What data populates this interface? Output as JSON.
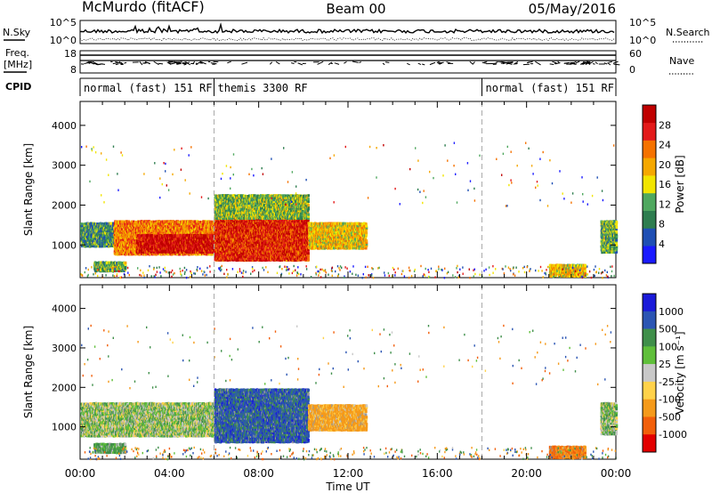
{
  "header": {
    "title": "McMurdo (fitACF)",
    "beam": "Beam 00",
    "date": "05/May/2016"
  },
  "top_panels": {
    "nsky_label": "N.Sky",
    "nsearch_label": "N.Search",
    "noise_ticks_left": [
      "10^5",
      "10^0"
    ],
    "noise_ticks_right": [
      "10^5",
      "10^0"
    ],
    "freq_label_1": "Freq.",
    "freq_label_2": "[MHz]",
    "freq_ticks": [
      "18",
      "8"
    ],
    "nave_label": "Nave",
    "nave_ticks": [
      "60",
      "0"
    ],
    "cpid_label": "CPID",
    "cpid_segments": [
      {
        "label": "normal (fast) 151 RF",
        "start_hour": 0,
        "end_hour": 6
      },
      {
        "label": "themis 3300 RF",
        "start_hour": 6,
        "end_hour": 18
      },
      {
        "label": "normal (fast) 151 RF",
        "start_hour": 18,
        "end_hour": 24
      }
    ]
  },
  "x_axis": {
    "label": "Time UT",
    "ticks": [
      "00:00",
      "04:00",
      "08:00",
      "12:00",
      "16:00",
      "20:00",
      "00:00"
    ],
    "range_hours": [
      0,
      24
    ]
  },
  "colors": {
    "power": [
      "#1a1aff",
      "#1f4fb4",
      "#2e7d4f",
      "#4fa85f",
      "#f2e500",
      "#f5a800",
      "#f57200",
      "#e31a1a",
      "#c00000"
    ],
    "velocity": [
      "#1a1ad9",
      "#2b55b3",
      "#3f8f4a",
      "#5fbf3a",
      "#c8c8c8",
      "#ffd24a",
      "#f59a1a",
      "#f25f0a",
      "#e30000"
    ],
    "ground_scatter": "#9a9a9a"
  },
  "chart_data": [
    {
      "type": "heatmap",
      "name": "power",
      "ylabel": "Slant Range [km]",
      "xlabel": "Time UT",
      "ylim": [
        180,
        4600
      ],
      "yticks": [
        1000,
        2000,
        3000,
        4000
      ],
      "colorbar": {
        "label": "Power [dB]",
        "range": [
          0,
          32
        ],
        "ticks": [
          "4",
          "8",
          "12",
          "16",
          "20",
          "24",
          "28"
        ]
      },
      "echo_regions": [
        {
          "t0": 0.0,
          "t1": 1.5,
          "r0": 1000,
          "r1": 1600,
          "value": 10
        },
        {
          "t0": 1.5,
          "t1": 6.0,
          "r0": 800,
          "r1": 1650,
          "value": 22
        },
        {
          "t0": 2.5,
          "t1": 6.0,
          "r0": 850,
          "r1": 1300,
          "value": 29
        },
        {
          "t0": 6.0,
          "t1": 10.2,
          "r0": 650,
          "r1": 1800,
          "value": 27
        },
        {
          "t0": 6.0,
          "t1": 10.2,
          "r0": 1700,
          "r1": 2300,
          "value": 13
        },
        {
          "t0": 10.2,
          "t1": 12.8,
          "r0": 950,
          "r1": 1600,
          "value": 18
        },
        {
          "t0": 0.6,
          "t1": 2.0,
          "r0": 380,
          "r1": 620,
          "value": 12
        },
        {
          "t0": 21.0,
          "t1": 22.6,
          "r0": 250,
          "r1": 550,
          "value": 18
        },
        {
          "t0": 23.3,
          "t1": 24.0,
          "r0": 850,
          "r1": 1650,
          "value": 12
        }
      ]
    },
    {
      "type": "heatmap",
      "name": "velocity",
      "ylabel": "Slant Range [km]",
      "xlabel": "Time UT",
      "ylim": [
        180,
        4600
      ],
      "yticks": [
        1000,
        2000,
        3000,
        4000
      ],
      "colorbar": {
        "label": "Velocity [m s^-1]",
        "ticks": [
          "1000",
          "500",
          "100",
          "25",
          "-25",
          "-100",
          "-500",
          "-1000"
        ]
      },
      "echo_regions": [
        {
          "t0": 0.0,
          "t1": 6.0,
          "r0": 800,
          "r1": 1650,
          "value": 40
        },
        {
          "t0": 6.0,
          "t1": 10.2,
          "r0": 650,
          "r1": 2000,
          "value": 700
        },
        {
          "t0": 10.2,
          "t1": 12.8,
          "r0": 950,
          "r1": 1600,
          "value": -200
        },
        {
          "t0": 0.6,
          "t1": 2.0,
          "r0": 380,
          "r1": 620,
          "value": 150
        },
        {
          "t0": 21.0,
          "t1": 22.6,
          "r0": 250,
          "r1": 550,
          "value": -500
        },
        {
          "t0": 23.3,
          "t1": 24.0,
          "r0": 850,
          "r1": 1650,
          "value": 60
        }
      ]
    }
  ]
}
